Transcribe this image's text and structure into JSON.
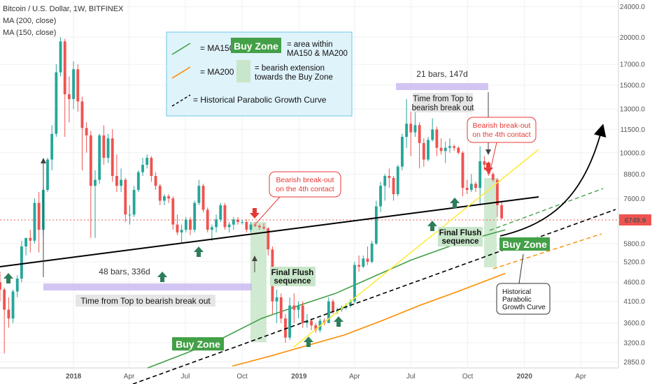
{
  "header": {
    "symbol": "Bitcoin / U.S. Dollar, 1W, BITFINEX",
    "ma200": "MA (200, close)",
    "ma150": "MA (150, close)"
  },
  "legend_box": {
    "ma150_eq": "= MA150",
    "buy_zone": "Buy Zone",
    "area_text_1": "= area within",
    "area_text_2": "MA150 & MA200",
    "ma200_eq": "= MA200",
    "bearish_1": "= bearish extension",
    "bearish_2": "towards the Buy Zone",
    "parabolic": "= Historical Parabolic Growth Curve"
  },
  "annotations": {
    "bars_left": "48 bars, 336d",
    "time_left": "Time from Top to bearish break out",
    "bars_right": "21 bars, 147d",
    "time_right_1": "Time from Top to",
    "time_right_2": "bearish break out",
    "breakout_left_1": "Bearish break-out",
    "breakout_left_2": "on the 4th contact",
    "breakout_right_1": "Bearish break-out",
    "breakout_right_2": "on the 4th contact",
    "flush_left_1": "Final Flush",
    "flush_left_2": "sequence",
    "flush_right_1": "Final Flush",
    "flush_right_2": "sequence",
    "buy_zone_left": "Buy Zone",
    "buy_zone_right": "Buy Zone",
    "hist_1": "Historical",
    "hist_2": "Parabolic",
    "hist_3": "Growth Curve"
  },
  "price_label": "6749.9",
  "colors": {
    "up": "#26a69a",
    "down": "#ef5350",
    "ma150": "#43a047",
    "ma200": "#fb8c00",
    "buy_zone": "#43a047",
    "legend_bg": "#dff3fb",
    "purple": "#c8b6f0",
    "price_line": "#ef5350"
  },
  "chart_data": {
    "type": "candlestick",
    "y_scale": "log",
    "ylim": [
      2750,
      25000
    ],
    "y_ticks": [
      2850,
      3200,
      3600,
      4100,
      4600,
      5200,
      5800,
      6749.9,
      7600,
      8800,
      10000,
      11500,
      13000,
      15000,
      17000,
      20000,
      24000
    ],
    "y_tick_labels": [
      "2850.0",
      "3200.0",
      "3600.0",
      "4100.0",
      "4600.0",
      "5200.0",
      "5800.0",
      "6749.9",
      "7600.0",
      "8800.0",
      "10000.0",
      "11500.0",
      "13000.0",
      "15000.0",
      "17000.0",
      "20000.0",
      "24000.0"
    ],
    "x_range": [
      "2017-09-04",
      "2020-06-01"
    ],
    "x_ticks": [
      {
        "date": "2018-01-01",
        "label": "2018"
      },
      {
        "date": "2018-04-01",
        "label": "Apr"
      },
      {
        "date": "2018-07-01",
        "label": "Jul"
      },
      {
        "date": "2018-10-01",
        "label": "Oct"
      },
      {
        "date": "2019-01-01",
        "label": "2019"
      },
      {
        "date": "2019-04-01",
        "label": "Apr"
      },
      {
        "date": "2019-07-01",
        "label": "Jul"
      },
      {
        "date": "2019-10-01",
        "label": "Oct"
      },
      {
        "date": "2020-01-01",
        "label": "2020"
      },
      {
        "date": "2020-04-01",
        "label": "Apr"
      }
    ],
    "series": [
      {
        "kind": "ohlc",
        "bars": [
          [
            "2017-09-04",
            4600,
            4900,
            4100,
            4400
          ],
          [
            "2017-09-11",
            4400,
            4450,
            3000,
            3900
          ],
          [
            "2017-09-18",
            3900,
            4200,
            3500,
            3700
          ],
          [
            "2017-09-25",
            3700,
            4400,
            3600,
            4350
          ],
          [
            "2017-10-02",
            4350,
            4800,
            4200,
            4700
          ],
          [
            "2017-10-09",
            4700,
            5900,
            4600,
            5700
          ],
          [
            "2017-10-16",
            5700,
            6000,
            5400,
            6000
          ],
          [
            "2017-10-23",
            6000,
            6300,
            5500,
            5900
          ],
          [
            "2017-10-30",
            5900,
            7600,
            5800,
            7400
          ],
          [
            "2017-11-06",
            7400,
            7900,
            5500,
            6300
          ],
          [
            "2017-11-13",
            6300,
            8100,
            6100,
            8000
          ],
          [
            "2017-11-20",
            8000,
            9700,
            7900,
            9600
          ],
          [
            "2017-11-27",
            9600,
            11800,
            9000,
            11200
          ],
          [
            "2017-12-04",
            11200,
            17000,
            11000,
            16200
          ],
          [
            "2017-12-11",
            16200,
            20000,
            15800,
            19500
          ],
          [
            "2017-12-18",
            19500,
            19800,
            11000,
            14200
          ],
          [
            "2017-12-25",
            14200,
            15800,
            12000,
            13800
          ],
          [
            "2018-01-01",
            13800,
            17300,
            13000,
            16500
          ],
          [
            "2018-01-08",
            16500,
            17000,
            12800,
            13600
          ],
          [
            "2018-01-15",
            13600,
            14000,
            9000,
            11600
          ],
          [
            "2018-01-22",
            11600,
            12000,
            10000,
            11100
          ],
          [
            "2018-01-29",
            11100,
            11400,
            6000,
            8200
          ],
          [
            "2018-02-05",
            8200,
            9000,
            6000,
            8500
          ],
          [
            "2018-02-12",
            8500,
            11200,
            8300,
            11100
          ],
          [
            "2018-02-19",
            11100,
            11800,
            9300,
            9700
          ],
          [
            "2018-02-26",
            9700,
            11200,
            9400,
            10900
          ],
          [
            "2018-03-05",
            10900,
            11500,
            8400,
            8700
          ],
          [
            "2018-03-12",
            8700,
            9900,
            7900,
            8200
          ],
          [
            "2018-03-19",
            8200,
            9100,
            7900,
            8500
          ],
          [
            "2018-03-26",
            8500,
            8600,
            6600,
            6900
          ],
          [
            "2018-04-02",
            6900,
            7300,
            6500,
            6900
          ],
          [
            "2018-04-09",
            6900,
            8200,
            6800,
            8000
          ],
          [
            "2018-04-16",
            8000,
            9000,
            7900,
            8900
          ],
          [
            "2018-04-23",
            8900,
            9700,
            8700,
            9300
          ],
          [
            "2018-04-30",
            9300,
            9900,
            9100,
            9700
          ],
          [
            "2018-05-07",
            9700,
            9800,
            8400,
            8700
          ],
          [
            "2018-05-14",
            8700,
            8900,
            8000,
            8200
          ],
          [
            "2018-05-21",
            8200,
            8300,
            7300,
            7500
          ],
          [
            "2018-05-28",
            7500,
            7800,
            7300,
            7700
          ],
          [
            "2018-06-04",
            7700,
            7800,
            7400,
            7600
          ],
          [
            "2018-06-11",
            7600,
            7700,
            6300,
            6500
          ],
          [
            "2018-06-18",
            6500,
            6900,
            6100,
            6200
          ],
          [
            "2018-06-25",
            6200,
            6500,
            5800,
            6300
          ],
          [
            "2018-07-02",
            6300,
            6800,
            6200,
            6700
          ],
          [
            "2018-07-09",
            6700,
            6800,
            6100,
            6300
          ],
          [
            "2018-07-16",
            6300,
            7500,
            6200,
            7400
          ],
          [
            "2018-07-23",
            7400,
            8500,
            7300,
            8200
          ],
          [
            "2018-07-30",
            8200,
            8300,
            7000,
            7100
          ],
          [
            "2018-08-06",
            7100,
            7200,
            6200,
            6300
          ],
          [
            "2018-08-13",
            6300,
            6500,
            5900,
            6400
          ],
          [
            "2018-08-20",
            6400,
            6900,
            6200,
            6700
          ],
          [
            "2018-08-27",
            6700,
            7400,
            6600,
            7300
          ],
          [
            "2018-09-03",
            7300,
            7400,
            6300,
            6400
          ],
          [
            "2018-09-10",
            6400,
            6600,
            6200,
            6500
          ],
          [
            "2018-09-17",
            6500,
            6800,
            6300,
            6700
          ],
          [
            "2018-09-24",
            6700,
            6800,
            6500,
            6600
          ],
          [
            "2018-10-01",
            6600,
            6700,
            6500,
            6600
          ],
          [
            "2018-10-08",
            6600,
            6700,
            6200,
            6300
          ],
          [
            "2018-10-15",
            6300,
            6600,
            6200,
            6500
          ],
          [
            "2018-10-22",
            6500,
            6600,
            6400,
            6450
          ],
          [
            "2018-10-29",
            6450,
            6500,
            6300,
            6400
          ],
          [
            "2018-11-05",
            6400,
            6550,
            6300,
            6350
          ],
          [
            "2018-11-12",
            6350,
            6400,
            5400,
            5600
          ],
          [
            "2018-11-19",
            5600,
            5700,
            3800,
            4100
          ],
          [
            "2018-11-26",
            4100,
            4400,
            3600,
            4200
          ],
          [
            "2018-12-03",
            4200,
            4300,
            3600,
            3700
          ],
          [
            "2018-12-10",
            3700,
            3800,
            3200,
            3300
          ],
          [
            "2018-12-17",
            3300,
            4200,
            3250,
            4000
          ],
          [
            "2018-12-24",
            4000,
            4300,
            3600,
            3900
          ],
          [
            "2018-12-31",
            3900,
            4100,
            3700,
            4000
          ],
          [
            "2019-01-07",
            4000,
            4100,
            3500,
            3600
          ],
          [
            "2019-01-14",
            3600,
            3800,
            3500,
            3650
          ],
          [
            "2019-01-21",
            3650,
            3700,
            3450,
            3550
          ],
          [
            "2019-01-28",
            3550,
            3600,
            3400,
            3450
          ],
          [
            "2019-02-04",
            3450,
            3700,
            3400,
            3650
          ],
          [
            "2019-02-11",
            3650,
            3700,
            3550,
            3600
          ],
          [
            "2019-02-18",
            3600,
            4200,
            3600,
            4100
          ],
          [
            "2019-02-25",
            4100,
            4150,
            3800,
            3850
          ],
          [
            "2019-03-04",
            3850,
            3950,
            3800,
            3900
          ],
          [
            "2019-03-11",
            3900,
            4000,
            3850,
            3950
          ],
          [
            "2019-03-18",
            3950,
            4050,
            3900,
            4000
          ],
          [
            "2019-03-25",
            4000,
            4150,
            3950,
            4100
          ],
          [
            "2019-04-01",
            4100,
            5200,
            4050,
            5100
          ],
          [
            "2019-04-08",
            5100,
            5400,
            4900,
            5050
          ],
          [
            "2019-04-15",
            5050,
            5400,
            5000,
            5300
          ],
          [
            "2019-04-22",
            5300,
            5700,
            5100,
            5200
          ],
          [
            "2019-04-29",
            5200,
            5900,
            5150,
            5800
          ],
          [
            "2019-05-06",
            5800,
            7500,
            5750,
            7250
          ],
          [
            "2019-05-13",
            7250,
            8400,
            7000,
            8200
          ],
          [
            "2019-05-20",
            8200,
            8800,
            7500,
            8700
          ],
          [
            "2019-05-27",
            8700,
            9100,
            8100,
            8600
          ],
          [
            "2019-06-03",
            8600,
            8700,
            7500,
            7800
          ],
          [
            "2019-06-10",
            7800,
            9300,
            7700,
            9200
          ],
          [
            "2019-06-17",
            9200,
            11200,
            9000,
            11000
          ],
          [
            "2019-06-24",
            11000,
            13800,
            10300,
            11900
          ],
          [
            "2019-07-01",
            11900,
            12800,
            9800,
            11300
          ],
          [
            "2019-07-08",
            11300,
            13100,
            11000,
            11800
          ],
          [
            "2019-07-15",
            11800,
            12000,
            9100,
            10600
          ],
          [
            "2019-07-22",
            10600,
            10900,
            9200,
            9600
          ],
          [
            "2019-07-29",
            9600,
            11000,
            9500,
            10800
          ],
          [
            "2019-08-05",
            10800,
            12300,
            10700,
            11500
          ],
          [
            "2019-08-12",
            11500,
            11700,
            9800,
            10300
          ],
          [
            "2019-08-19",
            10300,
            10900,
            9900,
            10100
          ],
          [
            "2019-08-26",
            10100,
            10700,
            9400,
            10300
          ],
          [
            "2019-09-02",
            10300,
            10900,
            10000,
            10400
          ],
          [
            "2019-09-09",
            10400,
            10500,
            10100,
            10300
          ],
          [
            "2019-09-16",
            10300,
            10400,
            9900,
            10000
          ],
          [
            "2019-09-23",
            10000,
            10100,
            7700,
            8100
          ],
          [
            "2019-09-30",
            8100,
            8500,
            7800,
            8000
          ],
          [
            "2019-10-07",
            8000,
            8800,
            7900,
            8300
          ],
          [
            "2019-10-14",
            8300,
            8400,
            7900,
            8100
          ],
          [
            "2019-10-21",
            8100,
            10400,
            7300,
            9500
          ],
          [
            "2019-10-28",
            9500,
            9800,
            9000,
            9300
          ],
          [
            "2019-11-04",
            9300,
            9500,
            8700,
            8800
          ],
          [
            "2019-11-11",
            8800,
            8900,
            8400,
            8500
          ],
          [
            "2019-11-18",
            8500,
            8600,
            6800,
            7300
          ],
          [
            "2019-11-25",
            7300,
            7500,
            6700,
            6749.9
          ]
        ]
      },
      {
        "kind": "ma",
        "name": "MA150",
        "color": "#43a047",
        "points": [
          [
            "2018-05-01",
            2750
          ],
          [
            "2018-07-01",
            3000
          ],
          [
            "2018-09-01",
            3300
          ],
          [
            "2018-11-01",
            3700
          ],
          [
            "2019-01-01",
            4000
          ],
          [
            "2019-03-01",
            4300
          ],
          [
            "2019-05-01",
            4750
          ],
          [
            "2019-07-01",
            5250
          ],
          [
            "2019-09-01",
            5700
          ],
          [
            "2019-10-15",
            6000
          ],
          [
            "2019-12-01",
            6300
          ]
        ]
      },
      {
        "kind": "ma",
        "name": "MA200",
        "color": "#fb8c00",
        "points": [
          [
            "2018-09-15",
            2780
          ],
          [
            "2018-11-15",
            2950
          ],
          [
            "2019-01-15",
            3150
          ],
          [
            "2019-03-15",
            3350
          ],
          [
            "2019-05-15",
            3650
          ],
          [
            "2019-07-15",
            4000
          ],
          [
            "2019-09-15",
            4350
          ],
          [
            "2019-11-01",
            4650
          ],
          [
            "2019-12-01",
            4850
          ]
        ]
      }
    ]
  }
}
